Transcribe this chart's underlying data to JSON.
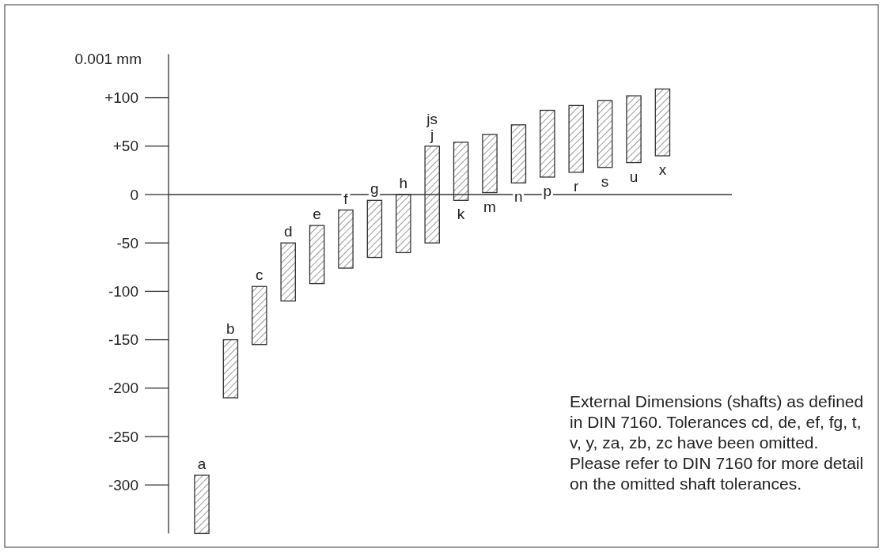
{
  "chart_data": {
    "type": "bar",
    "categories": [
      "a",
      "b",
      "c",
      "d",
      "e",
      "f",
      "g",
      "h",
      "js\nj",
      "k",
      "m",
      "n",
      "p",
      "r",
      "s",
      "u",
      "x"
    ],
    "base": [
      -350,
      -210,
      -155,
      -110,
      -92,
      -76,
      -65,
      -60,
      -50,
      -6,
      2,
      12,
      18,
      23,
      28,
      33,
      40
    ],
    "values": [
      60,
      60,
      60,
      60,
      60,
      60,
      59,
      60,
      100,
      60,
      60,
      60,
      69,
      69,
      69,
      69,
      69
    ],
    "color": "#333333",
    "ylabel": "0.001 mm",
    "ylim": [
      -350,
      145
    ],
    "yticks": [
      {
        "value": 100,
        "label": "+100"
      },
      {
        "value": 50,
        "label": "+50"
      },
      0,
      -50,
      -100,
      -150,
      -200,
      -250,
      -300
    ],
    "annotations": [
      "External Dimensions (shafts) as defined\nin DIN 7160. Tolerances cd, de, ef, fg, t,\nv, y, za, zb, zc have been omitted.\nPlease refer to DIN 7160 for more detail\non the omitted shaft tolerances."
    ]
  }
}
